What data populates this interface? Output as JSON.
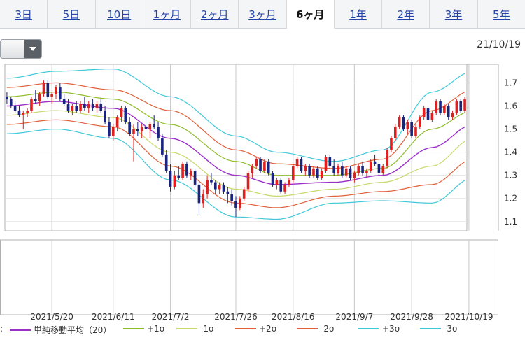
{
  "tabs": [
    {
      "label": "3日",
      "active": false
    },
    {
      "label": "5日",
      "active": false
    },
    {
      "label": "10日",
      "active": false
    },
    {
      "label": "1ヶ月",
      "active": false
    },
    {
      "label": "2ヶ月",
      "active": false
    },
    {
      "label": "3ヶ月",
      "active": false
    },
    {
      "label": "6ヶ月",
      "active": true
    },
    {
      "label": "1年",
      "active": false
    },
    {
      "label": "2年",
      "active": false
    },
    {
      "label": "3年",
      "active": false
    },
    {
      "label": "5年",
      "active": false
    }
  ],
  "selector": {
    "value": "",
    "icon": "chevron-down-icon"
  },
  "latest_date": "21/10/19",
  "legend_prefix": ":",
  "chart_data": {
    "type": "candlestick",
    "ylim": [
      1.06,
      1.78
    ],
    "y_ticks": [
      1.1,
      1.2,
      1.3,
      1.4,
      1.5,
      1.6,
      1.7
    ],
    "x_tick_labels": [
      "2021/5/20",
      "2021/6/11",
      "2021/7/2",
      "2021/7/26",
      "2021/8/16",
      "2021/9/7",
      "2021/9/28",
      "2021/10/19"
    ],
    "x_tick_index": [
      11,
      26,
      40,
      56,
      70,
      85,
      99,
      113
    ],
    "grid": true,
    "colors": {
      "up": "#e02020",
      "down": "#1a237e"
    },
    "candles": [
      [
        1.64,
        1.66,
        1.61,
        1.63
      ],
      [
        1.63,
        1.64,
        1.59,
        1.6
      ],
      [
        1.6,
        1.62,
        1.57,
        1.58
      ],
      [
        1.58,
        1.6,
        1.55,
        1.56
      ],
      [
        1.56,
        1.58,
        1.5,
        1.57
      ],
      [
        1.57,
        1.59,
        1.55,
        1.58
      ],
      [
        1.58,
        1.64,
        1.57,
        1.63
      ],
      [
        1.63,
        1.67,
        1.61,
        1.62
      ],
      [
        1.62,
        1.66,
        1.6,
        1.65
      ],
      [
        1.65,
        1.71,
        1.64,
        1.7
      ],
      [
        1.7,
        1.71,
        1.63,
        1.64
      ],
      [
        1.64,
        1.66,
        1.61,
        1.65
      ],
      [
        1.65,
        1.69,
        1.63,
        1.68
      ],
      [
        1.68,
        1.7,
        1.62,
        1.63
      ],
      [
        1.63,
        1.65,
        1.6,
        1.61
      ],
      [
        1.61,
        1.63,
        1.57,
        1.58
      ],
      [
        1.58,
        1.61,
        1.56,
        1.6
      ],
      [
        1.6,
        1.62,
        1.57,
        1.58
      ],
      [
        1.58,
        1.62,
        1.57,
        1.61
      ],
      [
        1.61,
        1.64,
        1.58,
        1.59
      ],
      [
        1.59,
        1.62,
        1.57,
        1.61
      ],
      [
        1.61,
        1.63,
        1.58,
        1.59
      ],
      [
        1.59,
        1.62,
        1.57,
        1.61
      ],
      [
        1.61,
        1.63,
        1.57,
        1.58
      ],
      [
        1.58,
        1.6,
        1.52,
        1.53
      ],
      [
        1.53,
        1.55,
        1.46,
        1.47
      ],
      [
        1.47,
        1.52,
        1.45,
        1.51
      ],
      [
        1.51,
        1.56,
        1.49,
        1.55
      ],
      [
        1.55,
        1.6,
        1.53,
        1.59
      ],
      [
        1.59,
        1.6,
        1.52,
        1.53
      ],
      [
        1.53,
        1.55,
        1.47,
        1.48
      ],
      [
        1.48,
        1.52,
        1.36,
        1.5
      ],
      [
        1.5,
        1.53,
        1.47,
        1.49
      ],
      [
        1.49,
        1.52,
        1.46,
        1.51
      ],
      [
        1.51,
        1.55,
        1.49,
        1.5
      ],
      [
        1.5,
        1.53,
        1.46,
        1.52
      ],
      [
        1.52,
        1.56,
        1.5,
        1.51
      ],
      [
        1.51,
        1.53,
        1.45,
        1.46
      ],
      [
        1.46,
        1.48,
        1.38,
        1.39
      ],
      [
        1.39,
        1.41,
        1.31,
        1.32
      ],
      [
        1.32,
        1.35,
        1.23,
        1.25
      ],
      [
        1.25,
        1.32,
        1.24,
        1.3
      ],
      [
        1.3,
        1.34,
        1.28,
        1.29
      ],
      [
        1.29,
        1.36,
        1.28,
        1.35
      ],
      [
        1.35,
        1.36,
        1.29,
        1.3
      ],
      [
        1.3,
        1.33,
        1.28,
        1.32
      ],
      [
        1.32,
        1.33,
        1.25,
        1.26
      ],
      [
        1.26,
        1.27,
        1.13,
        1.18
      ],
      [
        1.18,
        1.24,
        1.16,
        1.22
      ],
      [
        1.22,
        1.3,
        1.2,
        1.28
      ],
      [
        1.28,
        1.31,
        1.26,
        1.27
      ],
      [
        1.27,
        1.28,
        1.22,
        1.24
      ],
      [
        1.24,
        1.27,
        1.22,
        1.26
      ],
      [
        1.26,
        1.27,
        1.22,
        1.23
      ],
      [
        1.23,
        1.25,
        1.18,
        1.22
      ],
      [
        1.22,
        1.24,
        1.17,
        1.19
      ],
      [
        1.19,
        1.21,
        1.12,
        1.16
      ],
      [
        1.16,
        1.21,
        1.15,
        1.2
      ],
      [
        1.2,
        1.25,
        1.19,
        1.24
      ],
      [
        1.24,
        1.32,
        1.23,
        1.31
      ],
      [
        1.31,
        1.35,
        1.29,
        1.34
      ],
      [
        1.34,
        1.38,
        1.33,
        1.37
      ],
      [
        1.37,
        1.38,
        1.31,
        1.32
      ],
      [
        1.32,
        1.37,
        1.31,
        1.36
      ],
      [
        1.36,
        1.37,
        1.3,
        1.31
      ],
      [
        1.31,
        1.32,
        1.25,
        1.26
      ],
      [
        1.26,
        1.29,
        1.24,
        1.28
      ],
      [
        1.28,
        1.29,
        1.22,
        1.23
      ],
      [
        1.23,
        1.27,
        1.22,
        1.26
      ],
      [
        1.26,
        1.29,
        1.25,
        1.28
      ],
      [
        1.28,
        1.35,
        1.27,
        1.34
      ],
      [
        1.34,
        1.38,
        1.33,
        1.37
      ],
      [
        1.37,
        1.38,
        1.31,
        1.32
      ],
      [
        1.32,
        1.35,
        1.3,
        1.34
      ],
      [
        1.34,
        1.35,
        1.29,
        1.3
      ],
      [
        1.3,
        1.34,
        1.29,
        1.33
      ],
      [
        1.33,
        1.34,
        1.28,
        1.29
      ],
      [
        1.29,
        1.33,
        1.28,
        1.32
      ],
      [
        1.32,
        1.39,
        1.31,
        1.38
      ],
      [
        1.38,
        1.39,
        1.33,
        1.34
      ],
      [
        1.34,
        1.37,
        1.3,
        1.31
      ],
      [
        1.31,
        1.35,
        1.3,
        1.34
      ],
      [
        1.34,
        1.36,
        1.29,
        1.3
      ],
      [
        1.3,
        1.34,
        1.29,
        1.33
      ],
      [
        1.33,
        1.34,
        1.28,
        1.29
      ],
      [
        1.29,
        1.32,
        1.27,
        1.31
      ],
      [
        1.31,
        1.35,
        1.3,
        1.34
      ],
      [
        1.34,
        1.36,
        1.3,
        1.31
      ],
      [
        1.31,
        1.33,
        1.29,
        1.32
      ],
      [
        1.32,
        1.37,
        1.31,
        1.36
      ],
      [
        1.36,
        1.39,
        1.34,
        1.35
      ],
      [
        1.35,
        1.36,
        1.3,
        1.31
      ],
      [
        1.31,
        1.35,
        1.3,
        1.34
      ],
      [
        1.34,
        1.42,
        1.33,
        1.41
      ],
      [
        1.41,
        1.47,
        1.4,
        1.46
      ],
      [
        1.46,
        1.52,
        1.45,
        1.51
      ],
      [
        1.51,
        1.56,
        1.5,
        1.55
      ],
      [
        1.55,
        1.56,
        1.49,
        1.5
      ],
      [
        1.5,
        1.54,
        1.48,
        1.53
      ],
      [
        1.53,
        1.54,
        1.46,
        1.47
      ],
      [
        1.47,
        1.52,
        1.46,
        1.51
      ],
      [
        1.51,
        1.56,
        1.5,
        1.55
      ],
      [
        1.55,
        1.6,
        1.54,
        1.59
      ],
      [
        1.59,
        1.6,
        1.53,
        1.54
      ],
      [
        1.54,
        1.58,
        1.53,
        1.57
      ],
      [
        1.57,
        1.63,
        1.56,
        1.62
      ],
      [
        1.62,
        1.63,
        1.56,
        1.57
      ],
      [
        1.57,
        1.61,
        1.56,
        1.6
      ],
      [
        1.6,
        1.61,
        1.54,
        1.55
      ],
      [
        1.55,
        1.58,
        1.54,
        1.57
      ],
      [
        1.57,
        1.63,
        1.56,
        1.62
      ],
      [
        1.62,
        1.63,
        1.57,
        1.58
      ],
      [
        1.58,
        1.64,
        1.57,
        1.63
      ]
    ],
    "bands": {
      "sma": [
        [
          0,
          1.6
        ],
        [
          12,
          1.62
        ],
        [
          26,
          1.59
        ],
        [
          40,
          1.46
        ],
        [
          56,
          1.3
        ],
        [
          66,
          1.26
        ],
        [
          80,
          1.27
        ],
        [
          92,
          1.3
        ],
        [
          104,
          1.42
        ],
        [
          114,
          1.52
        ]
      ],
      "p1": [
        [
          0,
          1.64
        ],
        [
          12,
          1.66
        ],
        [
          26,
          1.63
        ],
        [
          40,
          1.52
        ],
        [
          56,
          1.36
        ],
        [
          66,
          1.3
        ],
        [
          80,
          1.3
        ],
        [
          92,
          1.33
        ],
        [
          104,
          1.5
        ],
        [
          114,
          1.58
        ]
      ],
      "m1": [
        [
          0,
          1.56
        ],
        [
          12,
          1.58
        ],
        [
          26,
          1.55
        ],
        [
          40,
          1.4
        ],
        [
          56,
          1.24
        ],
        [
          66,
          1.21
        ],
        [
          80,
          1.24
        ],
        [
          92,
          1.27
        ],
        [
          104,
          1.34
        ],
        [
          114,
          1.46
        ]
      ],
      "p2": [
        [
          0,
          1.68
        ],
        [
          12,
          1.7
        ],
        [
          26,
          1.67
        ],
        [
          40,
          1.58
        ],
        [
          56,
          1.41
        ],
        [
          66,
          1.35
        ],
        [
          80,
          1.33
        ],
        [
          92,
          1.37
        ],
        [
          104,
          1.58
        ],
        [
          114,
          1.67
        ]
      ],
      "m2": [
        [
          0,
          1.52
        ],
        [
          12,
          1.54
        ],
        [
          26,
          1.51
        ],
        [
          40,
          1.34
        ],
        [
          56,
          1.18
        ],
        [
          66,
          1.16
        ],
        [
          80,
          1.21
        ],
        [
          92,
          1.23
        ],
        [
          104,
          1.26
        ],
        [
          114,
          1.37
        ]
      ],
      "p3": [
        [
          0,
          1.72
        ],
        [
          12,
          1.75
        ],
        [
          26,
          1.76
        ],
        [
          40,
          1.64
        ],
        [
          56,
          1.47
        ],
        [
          66,
          1.4
        ],
        [
          80,
          1.36
        ],
        [
          92,
          1.41
        ],
        [
          104,
          1.66
        ],
        [
          114,
          1.75
        ]
      ],
      "m3": [
        [
          0,
          1.48
        ],
        [
          12,
          1.5
        ],
        [
          26,
          1.46
        ],
        [
          40,
          1.28
        ],
        [
          56,
          1.12
        ],
        [
          66,
          1.11
        ],
        [
          80,
          1.18
        ],
        [
          92,
          1.19
        ],
        [
          104,
          1.18
        ],
        [
          114,
          1.29
        ]
      ]
    }
  },
  "legend": [
    {
      "key": "sma",
      "label": "単純移動平均（20）",
      "color": "#9b30c8"
    },
    {
      "key": "p1",
      "label": "+1σ",
      "color": "#8fbc2b"
    },
    {
      "key": "m1",
      "label": "-1σ",
      "color": "#c8d86a"
    },
    {
      "key": "p2",
      "label": "+2σ",
      "color": "#e0603a"
    },
    {
      "key": "m2",
      "label": "-2σ",
      "color": "#e0603a"
    },
    {
      "key": "p3",
      "label": "+3σ",
      "color": "#3ec8d8"
    },
    {
      "key": "m3",
      "label": "-3σ",
      "color": "#3ec8d8"
    }
  ]
}
